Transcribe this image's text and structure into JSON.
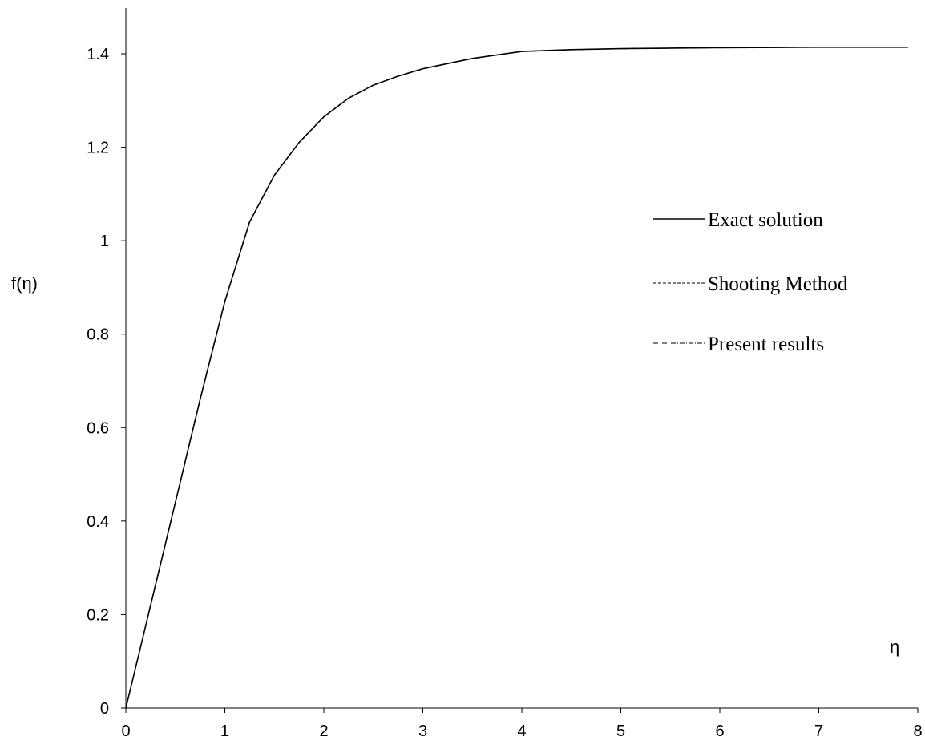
{
  "chart_data": {
    "type": "line",
    "xlabel": "η",
    "ylabel": "f(η)",
    "xlim": [
      0,
      8
    ],
    "ylim": [
      0,
      1.4
    ],
    "x_ticks": [
      "0",
      "1",
      "2",
      "3",
      "4",
      "5",
      "6",
      "7",
      "8"
    ],
    "y_ticks": [
      "0",
      "0.2",
      "0.4",
      "0.6",
      "0.8",
      "1",
      "1.2",
      "1.4"
    ],
    "grid": false,
    "legend_position": "right",
    "series": [
      {
        "name": "Exact solution",
        "style": "solid",
        "x": [
          0,
          0.25,
          0.5,
          0.75,
          1.0,
          1.25,
          1.5,
          1.75,
          2.0,
          2.25,
          2.5,
          2.75,
          3.0,
          3.5,
          4.0,
          4.5,
          5.0,
          6.0,
          7.0,
          7.9
        ],
        "y": [
          0,
          0.22,
          0.44,
          0.66,
          0.87,
          1.04,
          1.14,
          1.21,
          1.265,
          1.305,
          1.333,
          1.352,
          1.368,
          1.39,
          1.405,
          1.409,
          1.411,
          1.413,
          1.414,
          1.414
        ]
      },
      {
        "name": "Shooting Method",
        "style": "dashed",
        "x": [
          0,
          0.25,
          0.5,
          0.75,
          1.0,
          1.25,
          1.5,
          1.75,
          2.0,
          2.25,
          2.5,
          2.75,
          3.0,
          3.5,
          4.0,
          4.5,
          5.0,
          6.0,
          7.0,
          7.9
        ],
        "y": [
          0,
          0.22,
          0.44,
          0.66,
          0.87,
          1.04,
          1.14,
          1.21,
          1.265,
          1.305,
          1.333,
          1.352,
          1.368,
          1.39,
          1.405,
          1.409,
          1.411,
          1.413,
          1.414,
          1.414
        ]
      },
      {
        "name": "Present results",
        "style": "dash-dot",
        "x": [
          0,
          0.25,
          0.5,
          0.75,
          1.0,
          1.25,
          1.5,
          1.75,
          2.0,
          2.25,
          2.5,
          2.75,
          3.0,
          3.5,
          4.0,
          4.5,
          5.0,
          6.0,
          7.0,
          7.9
        ],
        "y": [
          0,
          0.22,
          0.44,
          0.66,
          0.87,
          1.04,
          1.14,
          1.21,
          1.265,
          1.305,
          1.333,
          1.352,
          1.368,
          1.39,
          1.405,
          1.409,
          1.411,
          1.413,
          1.414,
          1.414
        ]
      }
    ]
  }
}
